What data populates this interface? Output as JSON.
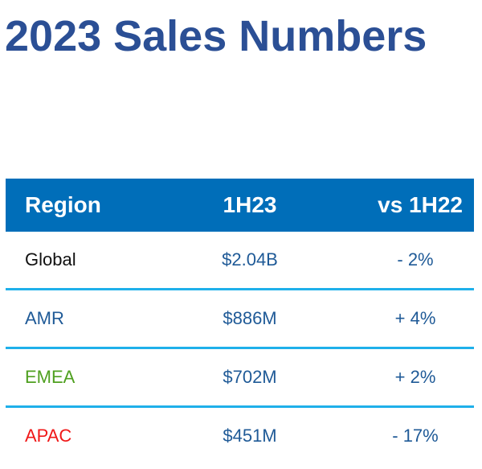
{
  "title": "2023 Sales Numbers",
  "table": {
    "headers": [
      "Region",
      "1H23",
      "vs 1H22"
    ],
    "rows": [
      {
        "region": "Global",
        "value": "$2.04B",
        "change": "- 2%",
        "region_color": "#111111"
      },
      {
        "region": "AMR",
        "value": "$886M",
        "change": "+ 4%",
        "region_color": "#1f5a97"
      },
      {
        "region": "EMEA",
        "value": "$702M",
        "change": "+ 2%",
        "region_color": "#4fa020"
      },
      {
        "region": "APAC",
        "value": "$451M",
        "change": "- 17%",
        "region_color": "#f01818"
      }
    ]
  },
  "colors": {
    "title": "#2b4f95",
    "header_bg": "#006eb9",
    "divider": "#1fb0ea",
    "value_text": "#1f5a97"
  }
}
